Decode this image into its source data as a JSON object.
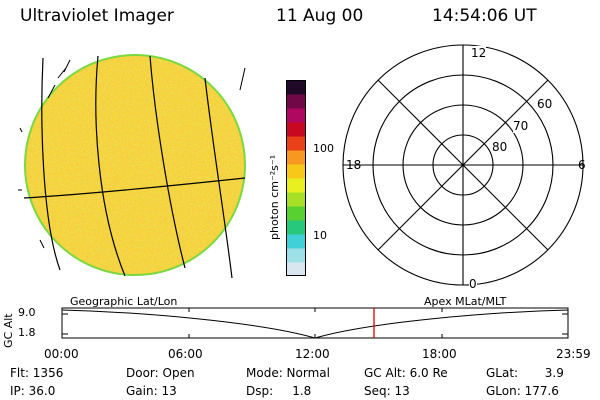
{
  "header": {
    "title": "Ultraviolet Imager",
    "date": "11 Aug 00",
    "time": "14:54:06 UT"
  },
  "colorbar": {
    "unit": "photon cm⁻²s⁻¹",
    "tick_100": "100",
    "tick_10": "10",
    "colors": [
      "#d8e6f0",
      "#9fe0e8",
      "#3fd0d8",
      "#28c87c",
      "#58d030",
      "#a8e028",
      "#e8f020",
      "#f8c818",
      "#f89820",
      "#e84018",
      "#c80820",
      "#b00860",
      "#700848",
      "#200828"
    ]
  },
  "polar": {
    "mlt_labels": {
      "top": "12",
      "right": "6",
      "bottom": "0",
      "left": "18"
    },
    "mlat_labels": {
      "r60": "60",
      "r70": "70",
      "r80": "80"
    }
  },
  "labels": {
    "geographic": "Geographic Lat/Lon",
    "apex": "Apex MLat/MLT"
  },
  "altitude_plot": {
    "axis_label": "GC Alt",
    "y_ticks": [
      "9.0",
      "1.8"
    ],
    "x_ticks": [
      "00:00",
      "06:00",
      "12:00",
      "18:00",
      "23:59"
    ],
    "marker_time": "14:54",
    "marker_color": "#e00000"
  },
  "info": {
    "flt": "Flt: 1356",
    "ip": "IP: 36.0",
    "door": "Door: Open",
    "gain": "Gain: 13",
    "mode": "Mode: Normal",
    "dsp": "Dsp:     1.8",
    "gc_alt": "GC Alt: 6.0 Re",
    "seq": "Seq: 13",
    "glat": "GLat:       3.9",
    "glon": "GLon: 177.6"
  }
}
